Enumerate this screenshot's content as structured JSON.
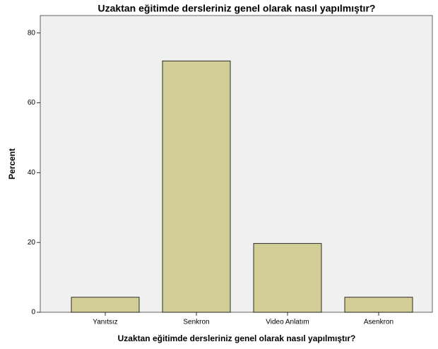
{
  "chart_data": {
    "type": "bar",
    "title": "Uzaktan eğitimde dersleriniz genel olarak nasıl yapılmıştır?",
    "x_label": "Uzaktan eğitimde dersleriniz genel olarak nasıl yapılmıştır?",
    "y_label": "Percent",
    "categories": [
      "Yanıtsız",
      "Senkron",
      "Video Anlatım",
      "Asenkron"
    ],
    "values": [
      4.3,
      72,
      19.7,
      4.3
    ],
    "color": "#d3ce97",
    "ylim": [
      0,
      85
    ],
    "yticks": [
      0,
      20,
      40,
      60,
      80
    ],
    "grid": false
  }
}
